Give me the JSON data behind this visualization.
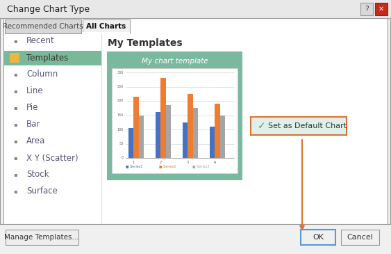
{
  "title": "Change Chart Type",
  "bg_color": "#f0f0f0",
  "tab_selected": "All Charts",
  "tab_unselected": "Recommended Charts",
  "left_menu": [
    "Recent",
    "Templates",
    "Column",
    "Line",
    "Pie",
    "Bar",
    "Area",
    "X Y (Scatter)",
    "Stock",
    "Surface"
  ],
  "selected_menu": "Templates",
  "panel_title": "My Templates",
  "chart_title": "My chart template",
  "chart_bg": "#7ab9a0",
  "series1_color": "#4472c4",
  "series2_color": "#ed7d31",
  "series3_color": "#a5a5a5",
  "series1_data": [
    105,
    160,
    125,
    110
  ],
  "series2_data": [
    215,
    280,
    225,
    190
  ],
  "series3_data": [
    150,
    185,
    175,
    150
  ],
  "categories": [
    "1",
    "2",
    "3",
    "4"
  ],
  "set_default_btn": "Set as Default Chart",
  "set_default_bg": "#dff0ea",
  "set_default_border": "#e07030",
  "check_color": "#5a9a70",
  "arrow_color": "#e07030",
  "ok_btn": "OK",
  "cancel_btn": "Cancel",
  "manage_btn": "Manage Templates...",
  "border_color": "#999999",
  "menu_selected_bg": "#7ab89a",
  "menu_selected_icon_color": "#e8b840",
  "text_color": "#555577"
}
